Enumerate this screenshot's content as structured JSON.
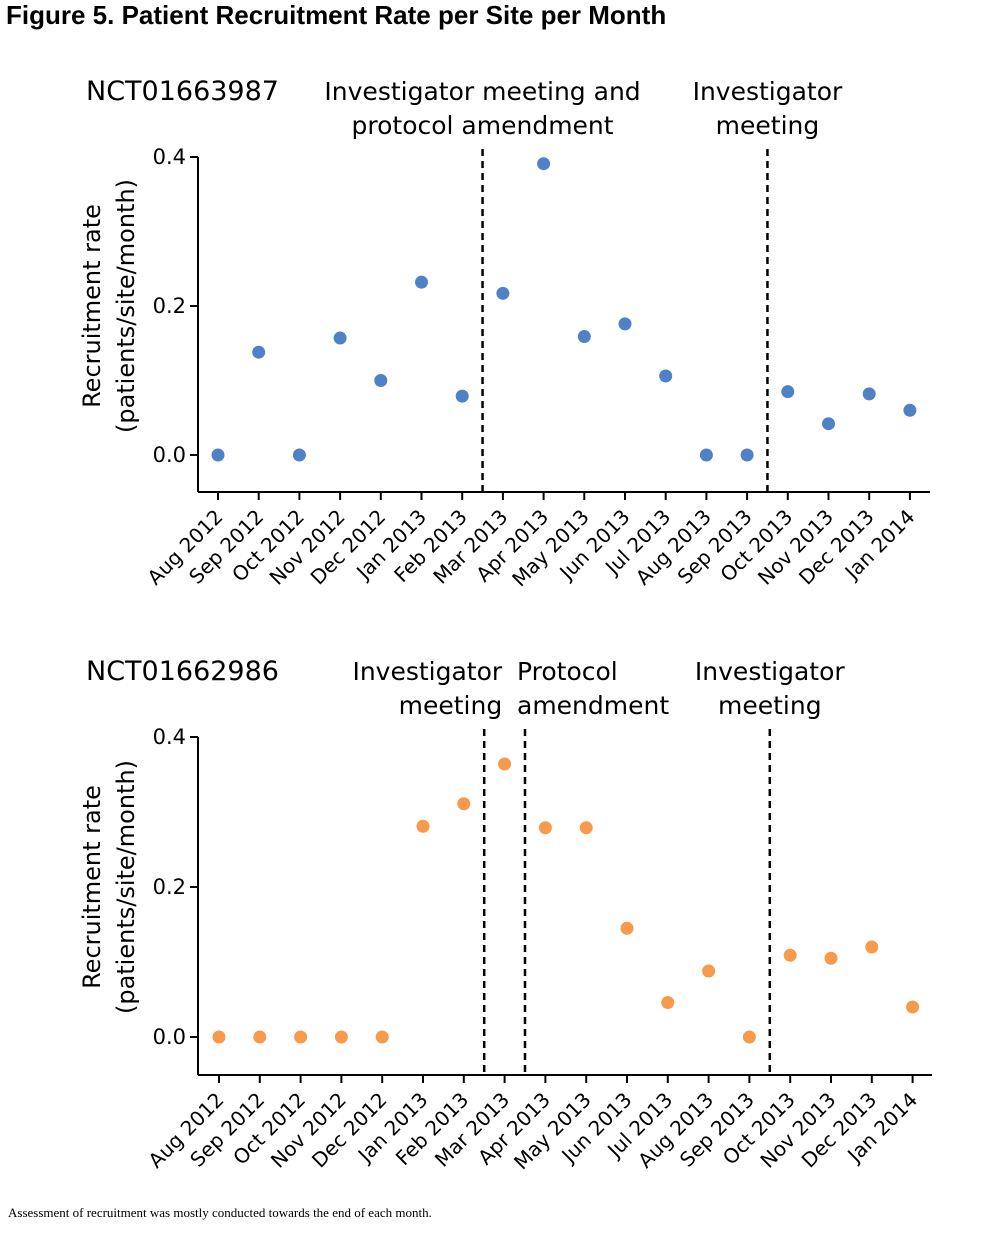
{
  "figure": {
    "title": "Figure 5. Patient Recruitment Rate per Site per Month",
    "footnote": "Assessment of recruitment was mostly conducted towards the end of each month."
  },
  "chart_data": [
    {
      "type": "scatter",
      "title": "NCT01663987",
      "xlabel": "",
      "ylabel": [
        "Recruitment rate",
        "(patients/site/month)"
      ],
      "ylim": [
        -0.05,
        0.4
      ],
      "yticks": [
        "0.0",
        "0.2",
        "0.4"
      ],
      "categories": [
        "Aug 2012",
        "Sep 2012",
        "Oct 2012",
        "Nov 2012",
        "Dec 2012",
        "Jan 2013",
        "Feb 2013",
        "Mar 2013",
        "Apr 2013",
        "May 2013",
        "Jun 2013",
        "Jul 2013",
        "Aug 2013",
        "Sep 2013",
        "Oct 2013",
        "Nov 2013",
        "Dec 2013",
        "Jan 2014"
      ],
      "values": [
        0.0,
        0.138,
        0.0,
        0.157,
        0.1,
        0.232,
        0.079,
        0.217,
        0.391,
        0.159,
        0.176,
        0.106,
        0.0,
        0.0,
        0.085,
        0.042,
        0.082,
        0.06
      ],
      "color": "#4f81c7",
      "grid": false,
      "events": [
        {
          "after_index": 6,
          "label": [
            "Investigator meeting and",
            "protocol amendment"
          ]
        },
        {
          "after_index": 13,
          "label": [
            "Investigator",
            "meeting"
          ]
        }
      ]
    },
    {
      "type": "scatter",
      "title": "NCT01662986",
      "xlabel": "",
      "ylabel": [
        "Recruitment rate",
        "(patients/site/month)"
      ],
      "ylim": [
        -0.05,
        0.4
      ],
      "yticks": [
        "0.0",
        "0.2",
        "0.4"
      ],
      "categories": [
        "Aug 2012",
        "Sep 2012",
        "Oct 2012",
        "Nov 2012",
        "Dec 2012",
        "Jan 2013",
        "Feb 2013",
        "Mar 2013",
        "Apr 2013",
        "May 2013",
        "Jun 2013",
        "Jul 2013",
        "Aug 2013",
        "Sep 2013",
        "Oct 2013",
        "Nov 2013",
        "Dec 2013",
        "Jan 2014"
      ],
      "values": [
        0.0,
        0.0,
        0.0,
        0.0,
        0.0,
        0.281,
        0.311,
        0.364,
        0.279,
        0.279,
        0.145,
        0.046,
        0.088,
        0.0,
        0.109,
        0.105,
        0.12,
        0.04
      ],
      "color": "#f79a4b",
      "grid": false,
      "events": [
        {
          "after_index": 6,
          "label": [
            "Investigator",
            "meeting"
          ],
          "align": "end"
        },
        {
          "after_index": 7,
          "label": [
            "Protocol",
            "amendment"
          ],
          "align": "start"
        },
        {
          "after_index": 13,
          "label": [
            "Investigator",
            "meeting"
          ]
        }
      ]
    }
  ]
}
